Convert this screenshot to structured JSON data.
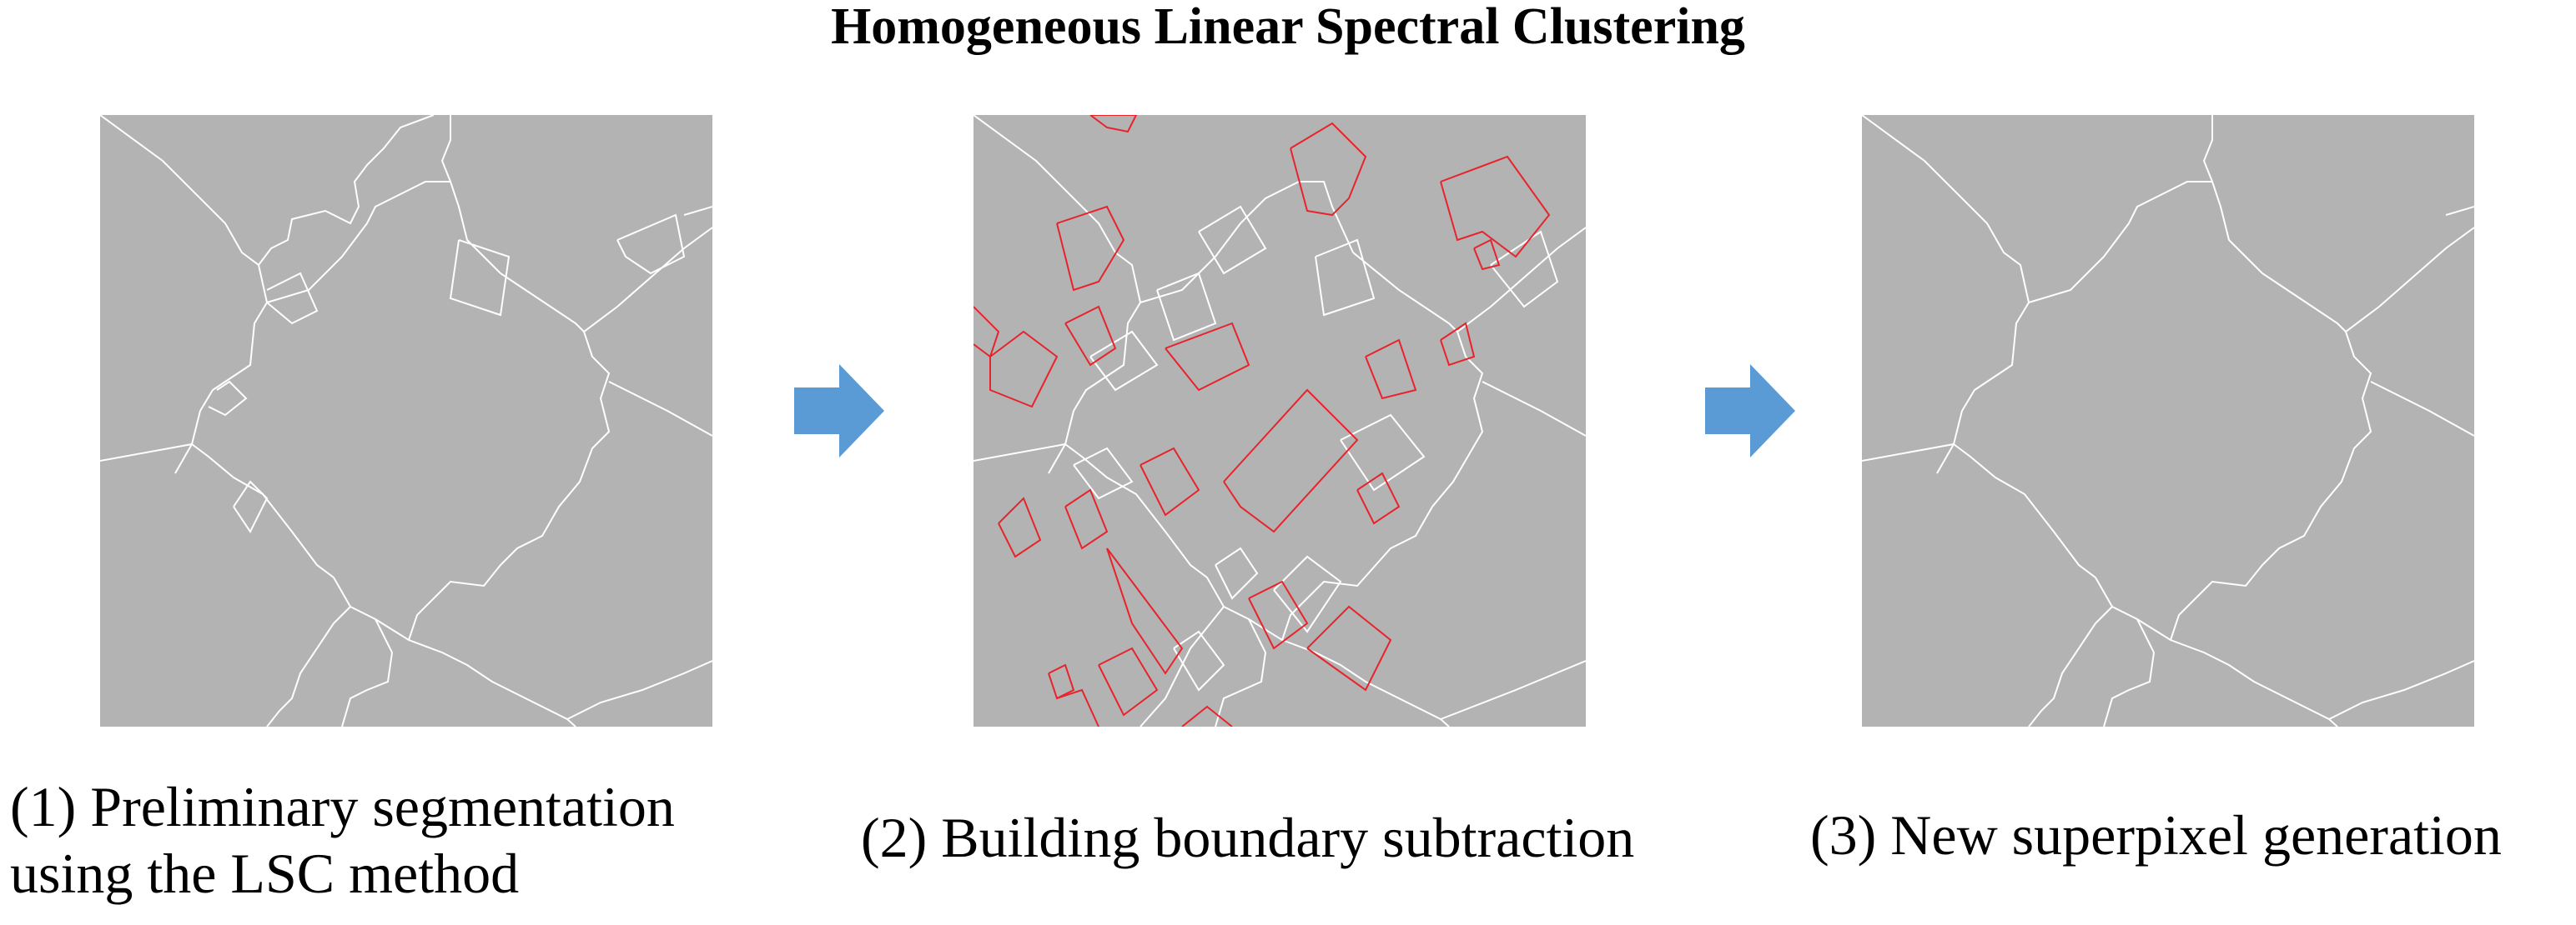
{
  "title": "Homogeneous Linear Spectral Clustering",
  "steps": [
    {
      "caption_line1": "(1) Preliminary  segmentation",
      "caption_line2": "using  the LSC method"
    },
    {
      "caption": "(2) Building boundary subtraction"
    },
    {
      "caption": "(3) New superpixel generation"
    }
  ],
  "colors": {
    "panel_background": "#b3b3b3",
    "segment_boundary": "#ffffff",
    "building_boundary": "#e8232c",
    "arrow": "#5b9bd5"
  },
  "icons": {
    "arrow": "right-arrow-icon"
  }
}
